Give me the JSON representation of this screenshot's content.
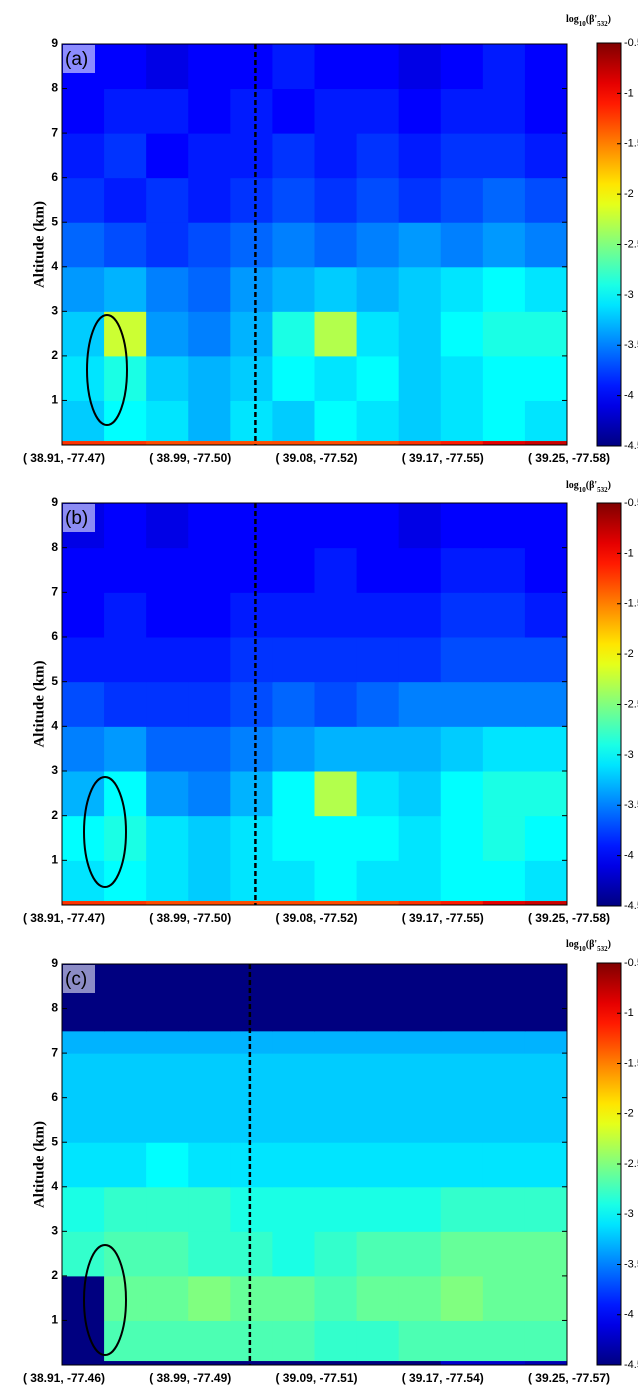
{
  "chart_data": [
    {
      "type": "heatmap",
      "panel_label": "(a)",
      "ylabel": "Altitude (km)",
      "colorbar_title": [
        "log",
        "10",
        "(β'",
        "532",
        ")"
      ],
      "categories": [
        "( 38.91, -77.47)",
        "( 38.99, -77.50)",
        "( 39.08, -77.52)",
        "( 39.17, -77.55)",
        "( 39.25, -77.58)"
      ],
      "ylim": [
        0,
        9
      ],
      "yticks": [
        1,
        2,
        3,
        4,
        5,
        6,
        7,
        8,
        9
      ],
      "y_edges": [
        0,
        0.1,
        1,
        2,
        3,
        4,
        5,
        6,
        7,
        8,
        9
      ],
      "clim": [
        -4.5,
        -0.5
      ],
      "cticks": [
        -0.5,
        -1,
        -1.5,
        -2,
        -2.5,
        -3,
        -3.5,
        -4,
        -4.5
      ],
      "z": [
        [
          -1.2,
          -1.2,
          -1.3,
          -1.3,
          -1.3,
          -1.3,
          -1.3,
          -1.3,
          -1.2,
          -1.1,
          -0.9,
          -0.8
        ],
        [
          -3.2,
          -3.0,
          -3.1,
          -3.3,
          -3.1,
          -3.2,
          -3.0,
          -3.1,
          -3.2,
          -3.1,
          -3.0,
          -3.1
        ],
        [
          -3.1,
          -2.9,
          -3.2,
          -3.3,
          -3.2,
          -3.0,
          -3.1,
          -3.0,
          -3.2,
          -3.1,
          -3.0,
          -3.0
        ],
        [
          -3.2,
          -2.2,
          -3.4,
          -3.5,
          -3.3,
          -2.9,
          -2.3,
          -3.1,
          -3.2,
          -3.0,
          -2.9,
          -2.9
        ],
        [
          -3.4,
          -3.3,
          -3.5,
          -3.6,
          -3.4,
          -3.3,
          -3.2,
          -3.3,
          -3.2,
          -3.1,
          -3.0,
          -3.1
        ],
        [
          -3.6,
          -3.7,
          -3.8,
          -3.7,
          -3.6,
          -3.5,
          -3.6,
          -3.5,
          -3.4,
          -3.5,
          -3.4,
          -3.5
        ],
        [
          -3.8,
          -3.9,
          -3.8,
          -3.9,
          -3.8,
          -3.7,
          -3.8,
          -3.7,
          -3.8,
          -3.7,
          -3.6,
          -3.7
        ],
        [
          -3.9,
          -3.8,
          -4.0,
          -3.9,
          -3.9,
          -3.8,
          -3.9,
          -3.8,
          -3.9,
          -3.8,
          -3.8,
          -3.9
        ],
        [
          -4.0,
          -3.9,
          -3.9,
          -4.0,
          -3.9,
          -4.0,
          -3.9,
          -3.9,
          -4.0,
          -3.9,
          -3.9,
          -4.0
        ],
        [
          -4.0,
          -4.0,
          -4.1,
          -4.0,
          -4.0,
          -3.9,
          -4.0,
          -4.0,
          -4.1,
          -4.0,
          -3.9,
          -4.0
        ]
      ]
    },
    {
      "type": "heatmap",
      "panel_label": "(b)",
      "ylabel": "Altitude (km)",
      "colorbar_title": [
        "log",
        "10",
        "(β'",
        "532",
        ")"
      ],
      "categories": [
        "( 38.91, -77.47)",
        "( 38.99, -77.50)",
        "( 39.08, -77.52)",
        "( 39.17, -77.55)",
        "( 39.25, -77.58)"
      ],
      "ylim": [
        0,
        9
      ],
      "yticks": [
        1,
        2,
        3,
        4,
        5,
        6,
        7,
        8,
        9
      ],
      "y_edges": [
        0,
        0.1,
        1,
        2,
        3,
        4,
        5,
        6,
        7,
        8,
        9
      ],
      "clim": [
        -4.5,
        -0.5
      ],
      "cticks": [
        -0.5,
        -1,
        -1.5,
        -2,
        -2.5,
        -3,
        -3.5,
        -4,
        -4.5
      ],
      "z": [
        [
          -1.2,
          -1.2,
          -1.3,
          -1.3,
          -1.3,
          -1.3,
          -1.3,
          -1.3,
          -1.2,
          -1.1,
          -0.9,
          -0.8
        ],
        [
          -3.1,
          -3.0,
          -3.1,
          -3.2,
          -3.1,
          -3.1,
          -3.0,
          -3.1,
          -3.1,
          -3.0,
          -3.0,
          -3.1
        ],
        [
          -3.0,
          -2.9,
          -3.1,
          -3.2,
          -3.1,
          -3.0,
          -3.0,
          -3.0,
          -3.1,
          -3.0,
          -2.9,
          -3.0
        ],
        [
          -3.3,
          -3.0,
          -3.4,
          -3.5,
          -3.3,
          -3.0,
          -2.3,
          -3.1,
          -3.2,
          -3.0,
          -2.9,
          -2.9
        ],
        [
          -3.5,
          -3.4,
          -3.6,
          -3.6,
          -3.5,
          -3.4,
          -3.3,
          -3.3,
          -3.3,
          -3.2,
          -3.1,
          -3.1
        ],
        [
          -3.7,
          -3.8,
          -3.8,
          -3.8,
          -3.7,
          -3.6,
          -3.7,
          -3.6,
          -3.5,
          -3.5,
          -3.5,
          -3.5
        ],
        [
          -3.9,
          -3.9,
          -3.9,
          -3.9,
          -3.8,
          -3.8,
          -3.8,
          -3.8,
          -3.8,
          -3.7,
          -3.7,
          -3.7
        ],
        [
          -4.0,
          -3.9,
          -4.0,
          -4.0,
          -3.9,
          -3.9,
          -3.9,
          -3.9,
          -3.9,
          -3.8,
          -3.8,
          -3.9
        ],
        [
          -4.0,
          -4.0,
          -4.0,
          -4.0,
          -4.0,
          -4.0,
          -3.9,
          -4.0,
          -4.0,
          -3.9,
          -3.9,
          -4.0
        ],
        [
          -4.1,
          -4.0,
          -4.1,
          -4.0,
          -4.0,
          -4.0,
          -4.0,
          -4.0,
          -4.1,
          -4.0,
          -4.0,
          -4.0
        ]
      ]
    },
    {
      "type": "heatmap",
      "panel_label": "(c)",
      "ylabel": "Altitude (km)",
      "colorbar_title": [
        "log",
        "10",
        "(β'",
        "532",
        ")"
      ],
      "categories": [
        "( 38.91, -77.46)",
        "( 38.99, -77.49)",
        "( 39.09, -77.51)",
        "( 39.17, -77.54)",
        "( 39.25, -77.57)"
      ],
      "ylim": [
        0,
        9
      ],
      "yticks": [
        1,
        2,
        3,
        4,
        5,
        6,
        7,
        8,
        9
      ],
      "y_edges": [
        0,
        0.1,
        1,
        2,
        3,
        4,
        5,
        6,
        7,
        7.5,
        9
      ],
      "clim": [
        -4.5,
        -0.5
      ],
      "cticks": [
        -0.5,
        -1,
        -1.5,
        -2,
        -2.5,
        -3,
        -3.5,
        -4,
        -4.5
      ],
      "z": [
        [
          -4.5,
          -4.5,
          -4.5,
          -4.5,
          -4.5,
          -4.5,
          -4.5,
          -4.5,
          -4.5,
          -4.2,
          -4.2,
          -4.3
        ],
        [
          -4.5,
          -2.7,
          -2.7,
          -2.7,
          -2.7,
          -2.7,
          -2.8,
          -2.8,
          -2.7,
          -2.7,
          -2.7,
          -2.7
        ],
        [
          -4.5,
          -2.6,
          -2.6,
          -2.5,
          -2.6,
          -2.6,
          -2.7,
          -2.6,
          -2.6,
          -2.5,
          -2.6,
          -2.6
        ],
        [
          -2.8,
          -2.7,
          -2.7,
          -2.8,
          -2.8,
          -2.9,
          -2.8,
          -2.7,
          -2.7,
          -2.6,
          -2.6,
          -2.6
        ],
        [
          -2.9,
          -2.8,
          -2.8,
          -2.8,
          -2.9,
          -2.9,
          -2.9,
          -2.9,
          -2.9,
          -2.8,
          -2.8,
          -2.8
        ],
        [
          -3.1,
          -3.1,
          -3.0,
          -3.1,
          -3.1,
          -3.1,
          -3.1,
          -3.1,
          -3.1,
          -3.1,
          -3.1,
          -3.1
        ],
        [
          -3.2,
          -3.2,
          -3.2,
          -3.2,
          -3.2,
          -3.2,
          -3.2,
          -3.2,
          -3.2,
          -3.2,
          -3.2,
          -3.2
        ],
        [
          -3.2,
          -3.2,
          -3.2,
          -3.2,
          -3.2,
          -3.2,
          -3.2,
          -3.2,
          -3.2,
          -3.2,
          -3.2,
          -3.2
        ],
        [
          -3.3,
          -3.3,
          -3.3,
          -3.3,
          -3.3,
          -3.3,
          -3.3,
          -3.3,
          -3.3,
          -3.3,
          -3.3,
          -3.3
        ],
        [
          -4.5,
          -4.5,
          -4.5,
          -4.5,
          -4.5,
          -4.5,
          -4.5,
          -4.5,
          -4.5,
          -4.5,
          -4.5,
          -4.5
        ]
      ]
    }
  ]
}
